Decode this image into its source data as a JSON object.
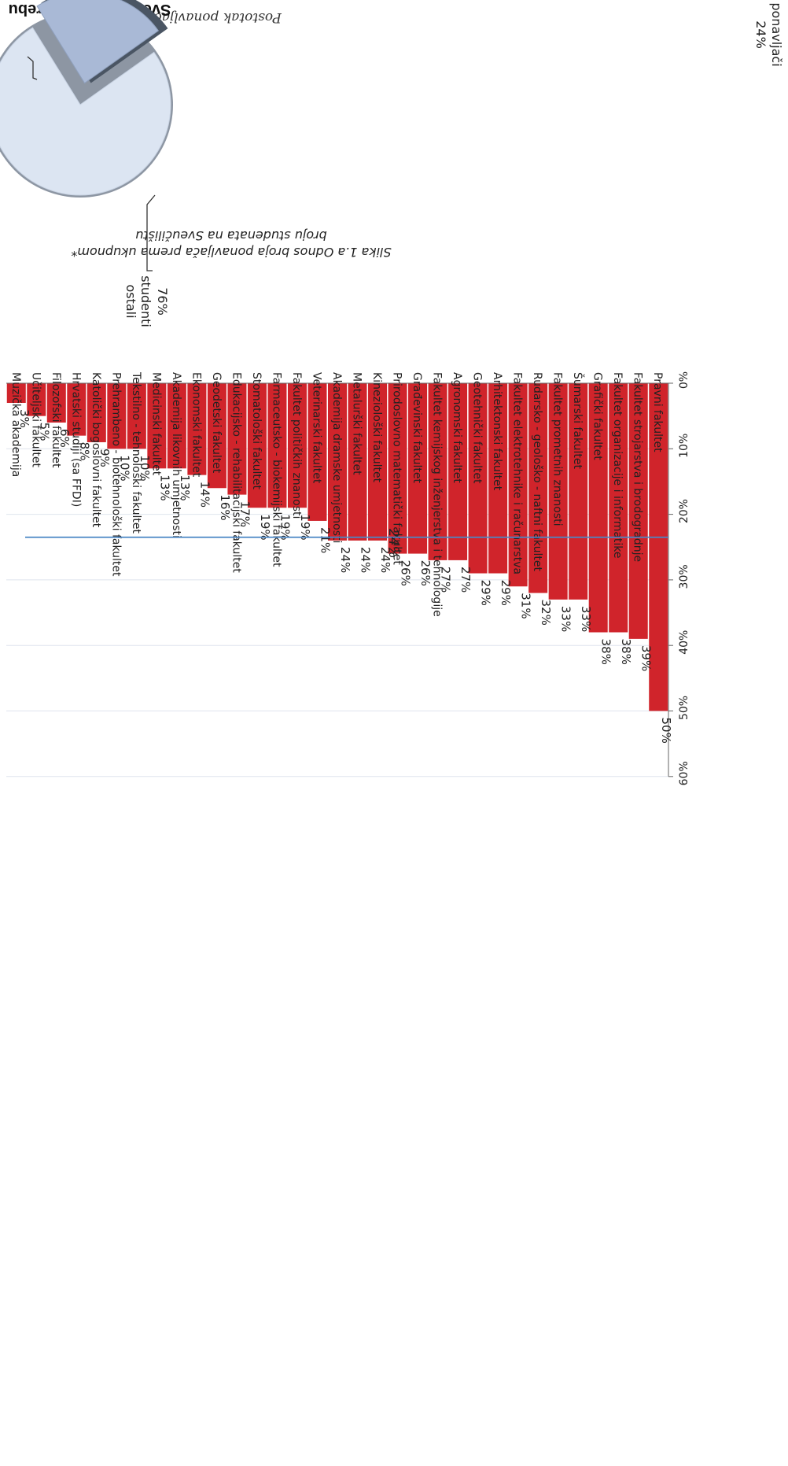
{
  "chart_data": {
    "type": "bar",
    "title": "Sveučilište u Zagrebu",
    "caption_line1": "Slika 1.a  Odnos broja ponavljača prema ukupnom*",
    "caption_line2": "broju studenata na Sveučilištu",
    "ylabel": "Postotak ponavljača",
    "ylim": [
      0,
      60
    ],
    "yticks": [
      "0%",
      "10%",
      "20%",
      "30%",
      "40%",
      "50%",
      "60%"
    ],
    "grid": true,
    "reference_line": {
      "value": 23.5,
      "label": "24%",
      "color": "#4a86c5"
    },
    "bar_color": "#d0242b",
    "categories": [
      "Pravni fakultet",
      "Fakultet strojarstva i brodogradnje",
      "Fakultet organizacije i informatike",
      "Grafički fakultet",
      "Šumarski fakultet",
      "Fakultet prometnih znanosti",
      "Rudarsko - geološko - naftni fakultet",
      "Fakultet elektrotehnike i računarstva",
      "Arhitektonski fakultet",
      "Geotehnički fakultet",
      "Agronomski fakultet",
      "Fakultet kemijskog inženjerstva i tehnologije",
      "Građevinski fakultet",
      "Prirodoslovno matematički fakultet",
      "Kineziološki fakultet",
      "Metalurški fakultet",
      "Akademija dramske umjetnosti",
      "Veterinarski fakultet",
      "Fakultet političkih znanosti",
      "Farmaceutsko - biokemijski fakultet",
      "Stomatološki fakultet",
      "Edukacijsko - rehabilitacijski fakultet",
      "Geodetski fakultet",
      "Ekonomski fakultet",
      "Akademija likovnih umjetnosti",
      "Medicinski fakultet",
      "Tekstilno - tehnološki fakultet",
      "Prehrambeno - biotehnološki fakultet",
      "Katolički bogoslovni fakultet",
      "Hrvatski studiji (sa FFDI)",
      "Filozofski fakultet",
      "Učiteljski fakultet",
      "Muzička akademija"
    ],
    "values": [
      50,
      39,
      38,
      38,
      33,
      33,
      32,
      31,
      29,
      29,
      27,
      27,
      26,
      26,
      24,
      24,
      24,
      21,
      19,
      19,
      19,
      17,
      16,
      14,
      13,
      13,
      10,
      10,
      9,
      8,
      6,
      5,
      3
    ],
    "value_labels": [
      "50%",
      "39%",
      "38%",
      "38%",
      "33%",
      "33%",
      "32%",
      "31%",
      "29%",
      "29%",
      "27%",
      "27%",
      "26%",
      "26%",
      "24%",
      "24%",
      "24%",
      "21%",
      "19%",
      "19%",
      "19%",
      "17%",
      "16%",
      "14%",
      "13%",
      "13%",
      "10%",
      "10%",
      "9%",
      "8%",
      "6%",
      "5%",
      "3%"
    ],
    "inset_pie": {
      "type": "pie",
      "slices": [
        {
          "label": "ponavljači",
          "value": 24,
          "value_label": "24%",
          "color": "#a9b9d6"
        },
        {
          "label": "ostali\nstudenti",
          "value": 76,
          "value_label": "76%",
          "color": "#dce5f2"
        }
      ]
    },
    "orientation": "rotated 180°"
  }
}
